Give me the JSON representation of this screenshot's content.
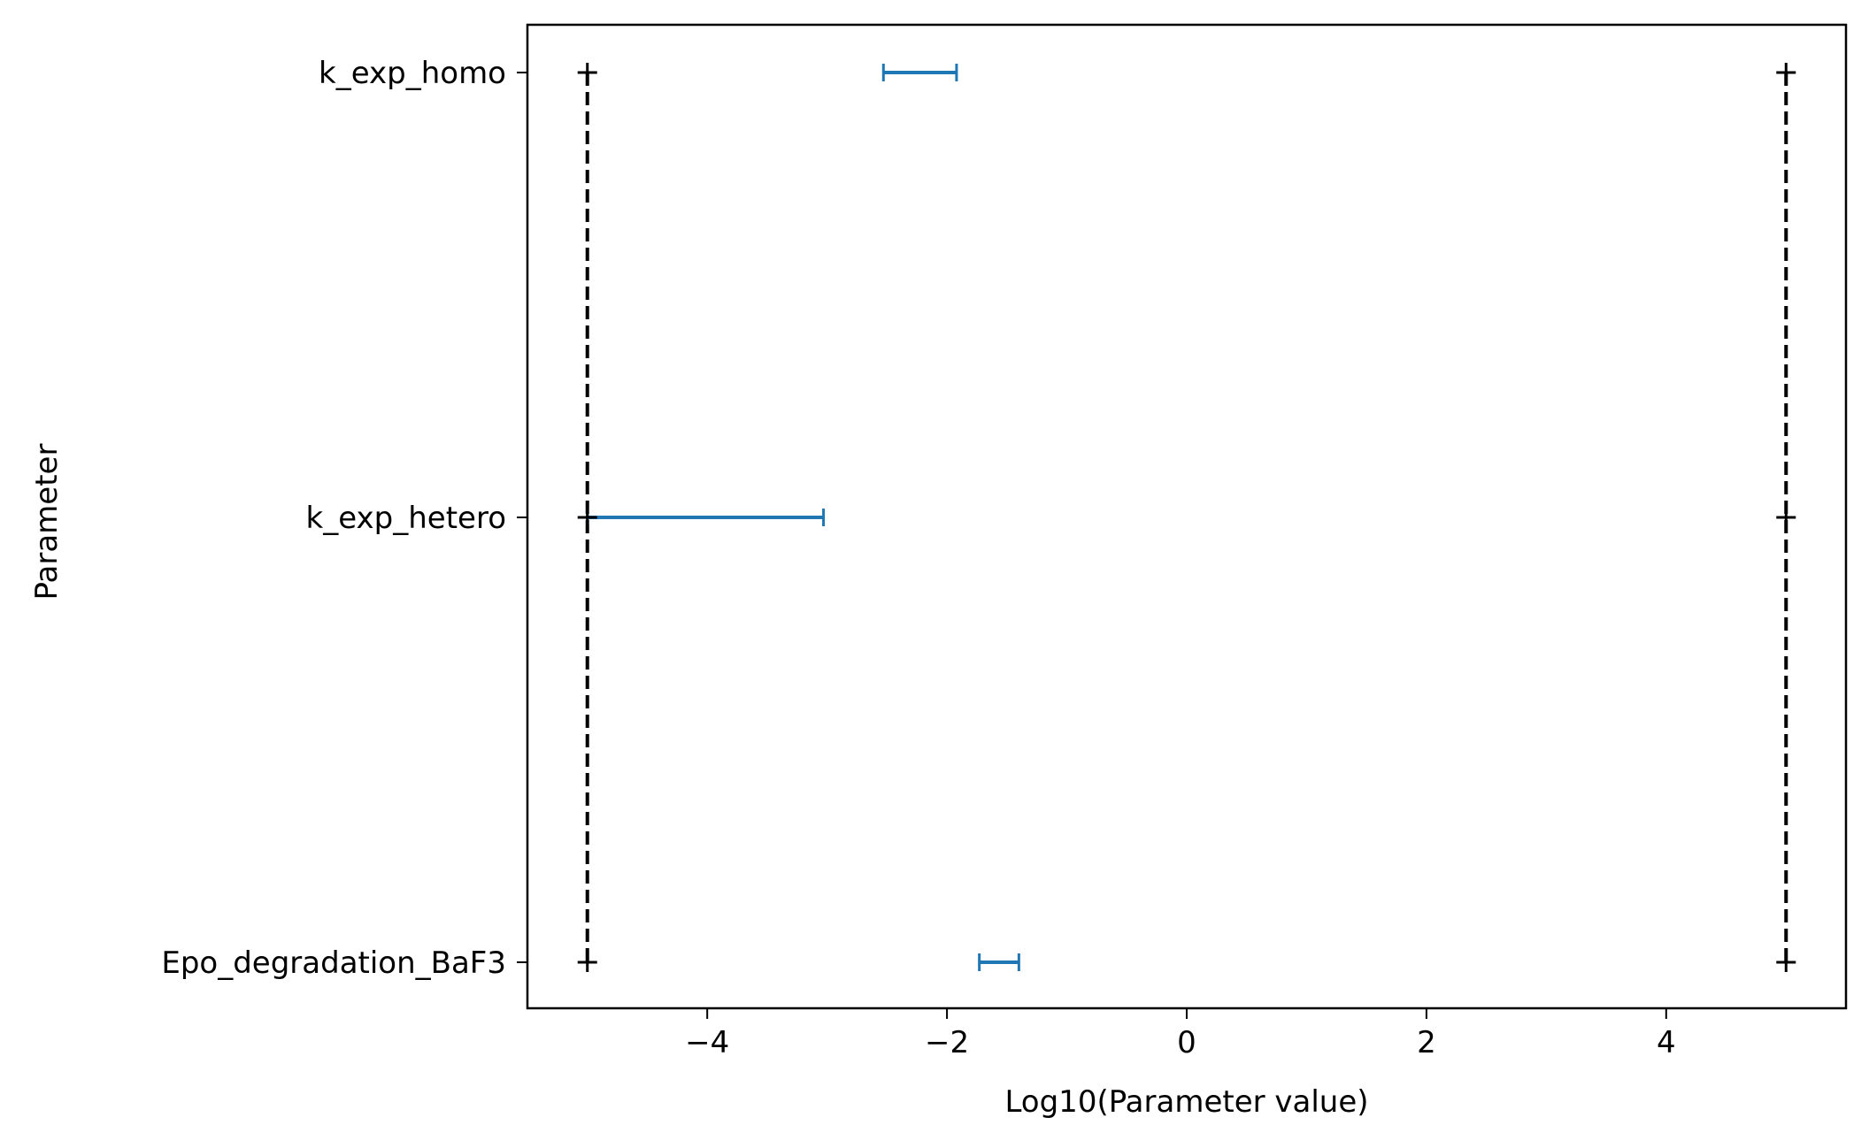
{
  "chart_data": {
    "type": "interval",
    "xlabel": "Log10(Parameter value)",
    "ylabel": "Parameter",
    "xlim": [
      -5.5,
      5.5
    ],
    "xticks": [
      -4,
      -2,
      0,
      2,
      4
    ],
    "xtick_labels": [
      "−4",
      "−2",
      "0",
      "2",
      "4"
    ],
    "grid": false,
    "colors": {
      "interval": "#1f77b4",
      "bounds": "#000000"
    },
    "parameters": [
      {
        "name": "k_exp_homo",
        "interval": [
          -2.53,
          -1.92
        ],
        "lower_bound": -5,
        "upper_bound": 5
      },
      {
        "name": "k_exp_hetero",
        "interval": [
          -5.0,
          -3.03
        ],
        "lower_bound": -5,
        "upper_bound": 5
      },
      {
        "name": "Epo_degradation_BaF3",
        "interval": [
          -1.73,
          -1.4
        ],
        "lower_bound": -5,
        "upper_bound": 5
      }
    ]
  }
}
